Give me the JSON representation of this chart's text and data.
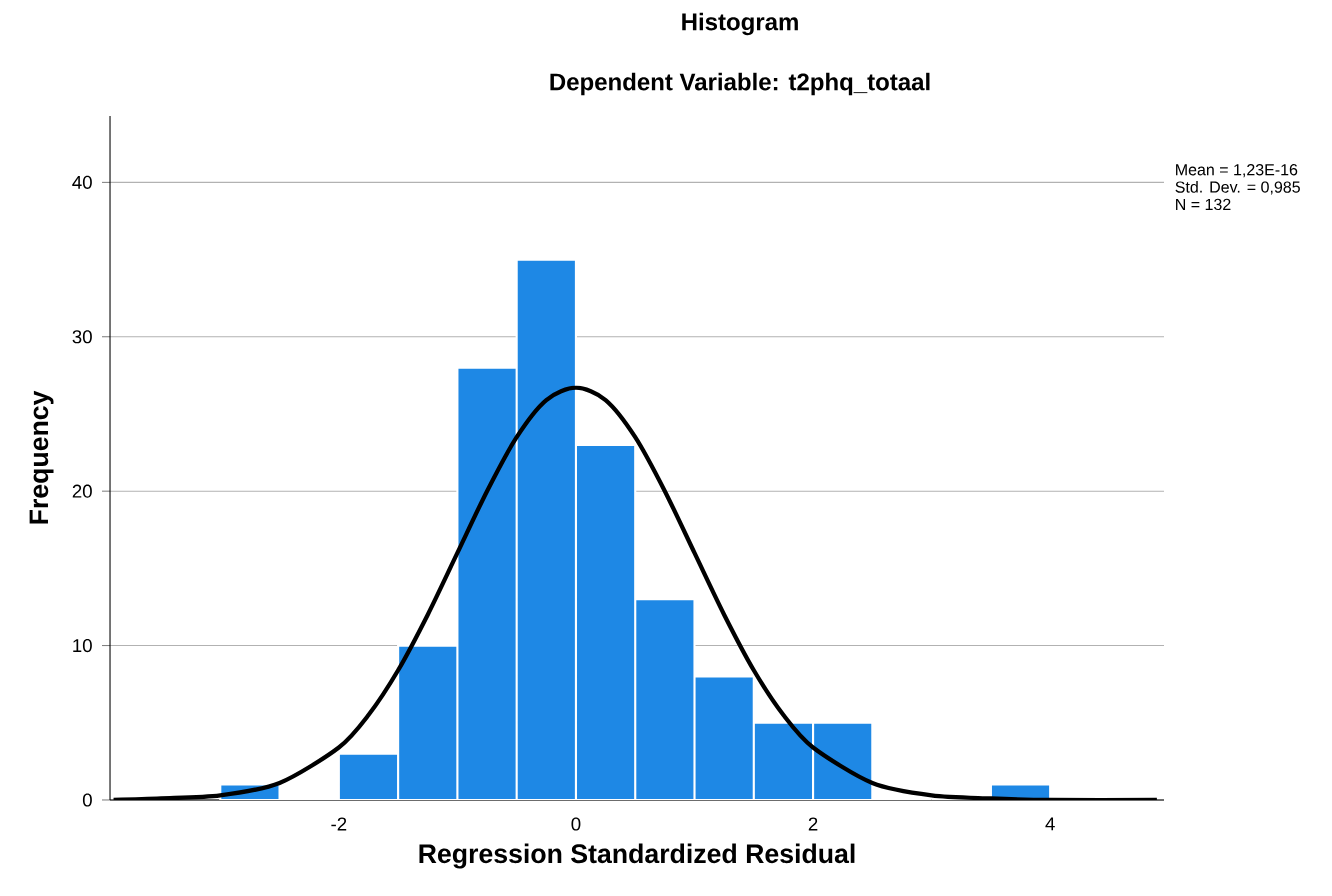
{
  "chart_data": {
    "type": "histogram",
    "title": "Histogram",
    "subtitle": "Dependent Variable: t2phq_totaal",
    "xlabel": "Regression Standardized Residual",
    "ylabel": "Frequency",
    "bins": [
      -3.0,
      -2.5,
      -2.0,
      -1.5,
      -1.0,
      -0.5,
      0.0,
      0.5,
      1.0,
      1.5,
      2.0,
      2.5,
      3.0,
      3.5,
      4.0
    ],
    "values": [
      1,
      0,
      3,
      10,
      28,
      35,
      23,
      13,
      8,
      5,
      5,
      0,
      0,
      1
    ],
    "color": "#1e88e5",
    "series": [
      {
        "type": "line",
        "color": "#000000",
        "x": [
          -3.9,
          -3.5,
          -3.0,
          -2.5,
          -2.0,
          -1.75,
          -1.5,
          -1.25,
          -1.0,
          -0.75,
          -0.5,
          -0.25,
          0.0,
          0.25,
          0.5,
          0.75,
          1.0,
          1.25,
          1.5,
          1.75,
          2.0,
          2.5,
          3.0,
          3.5,
          4.0,
          4.9
        ],
        "values": [
          0,
          0.1,
          0.3,
          1.1,
          3.4,
          5.5,
          8.4,
          12,
          16,
          20,
          23.5,
          25.9,
          26.7,
          25.9,
          23.5,
          20,
          16,
          12,
          8.4,
          5.5,
          3.4,
          1.1,
          0.3,
          0.1,
          0,
          0
        ]
      }
    ],
    "xlim": [
      -3.93,
      4.96
    ],
    "ylim": [
      0,
      44.3
    ],
    "xticks": [
      -2,
      0,
      2,
      4
    ],
    "yticks": [
      0,
      10,
      20,
      30,
      40
    ],
    "grid": "y",
    "annotations": [
      "Mean = 1,23E-16",
      "Std. Dev. = 0,985",
      "N = 132"
    ]
  }
}
